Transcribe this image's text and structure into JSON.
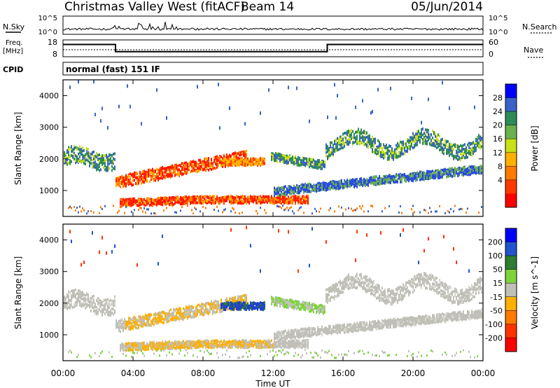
{
  "header": {
    "station": "Christmas Valley West (fitACF)",
    "beam": "Beam 14",
    "date": "05/Jun/2014"
  },
  "summary": {
    "nsky_label": "N.Sky",
    "nsky_ticks": [
      "10^5",
      "10^0"
    ],
    "nsearch_label": "N.Search",
    "nsearch_ticks": [
      "10^5",
      "10^0"
    ],
    "freq_label_line1": "Freq.",
    "freq_label_line2": "[MHz]",
    "freq_ticks": [
      "18",
      "8"
    ],
    "nave_label": "Nave",
    "nave_ticks": [
      "60",
      "0"
    ],
    "cpid_label": "CPID",
    "cpid_value": "normal (fast) 151 IF"
  },
  "colors": {
    "power_scale": [
      "#0000ff",
      "#3a62c8",
      "#2e8b57",
      "#6ab04c",
      "#c8e016",
      "#ffb000",
      "#ff7a00",
      "#ff3a00",
      "#ff0000"
    ],
    "velocity_scale": [
      "#0000ff",
      "#2255cc",
      "#2e7d32",
      "#7cd43a",
      "#c0c0b8",
      "#ffb000",
      "#ff7a00",
      "#ff3300",
      "#ff0000"
    ]
  },
  "chart_data": [
    {
      "type": "heatmap",
      "name": "power-panel",
      "ylabel": "Slant Range [km]",
      "y_ticks": [
        "4000",
        "3000",
        "2000",
        "1000"
      ],
      "y_tick_values": [
        4000,
        3000,
        2000,
        1000
      ],
      "ylim": [
        180,
        4500
      ],
      "colorbar": {
        "label": "Power [dB]",
        "tick_labels": [
          "28",
          "24",
          "20",
          "16",
          "12",
          "8",
          "4"
        ],
        "range": [
          0,
          32
        ]
      }
    },
    {
      "type": "heatmap",
      "name": "velocity-panel",
      "ylabel": "Slant Range [km]",
      "y_ticks": [
        "4000",
        "3000",
        "2000",
        "1000"
      ],
      "y_tick_values": [
        4000,
        3000,
        2000,
        1000
      ],
      "ylim": [
        180,
        4500
      ],
      "colorbar": {
        "label": "Velocity [m s^-1]",
        "tick_labels": [
          "200",
          "100",
          "50",
          "15",
          "-15",
          "-50",
          "-100",
          "-200"
        ]
      }
    }
  ],
  "xaxis": {
    "label": "Time UT",
    "ticks": [
      "00:00",
      "04:00",
      "08:00",
      "12:00",
      "16:00",
      "20:00",
      "00:00"
    ],
    "tick_hours": [
      0,
      4,
      8,
      12,
      16,
      20,
      24
    ]
  },
  "freq_series": {
    "hours": [
      0,
      3.0,
      3.0,
      15.1,
      15.1,
      24
    ],
    "mhz": [
      15.3,
      15.3,
      11.0,
      11.0,
      15.3,
      15.3
    ]
  }
}
